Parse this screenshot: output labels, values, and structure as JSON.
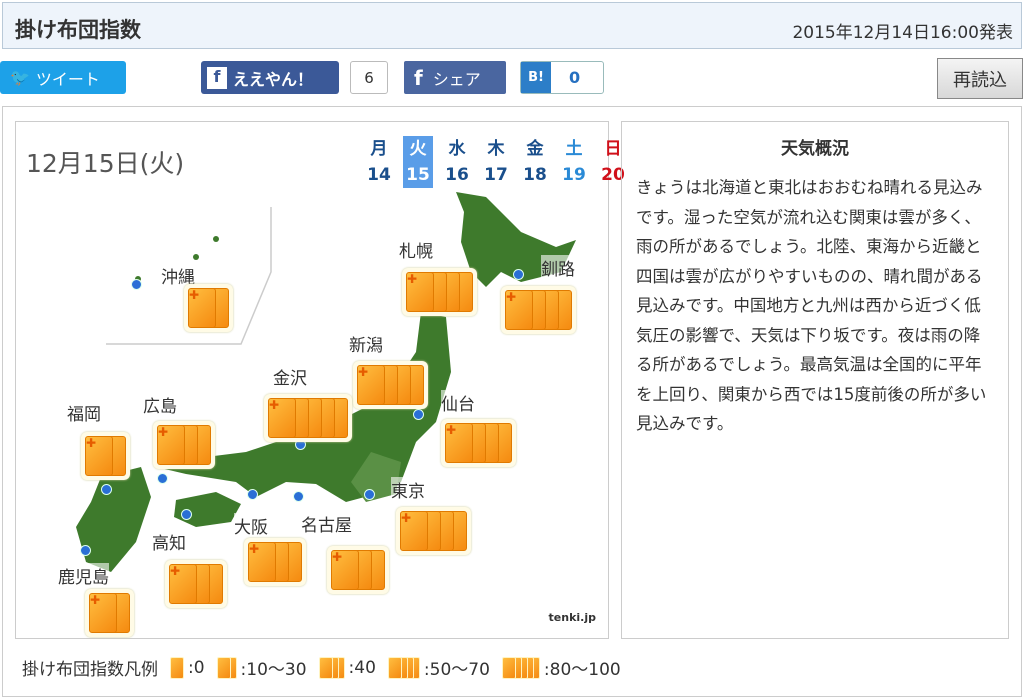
{
  "header": {
    "title": "掛け布団指数",
    "issued": "2015年12月14日16:00発表"
  },
  "social": {
    "tweet": "ツイート",
    "like": "ええやん！",
    "like_count": "6",
    "share": "シェア",
    "hatena_icon": "B!",
    "hatena_count": "0"
  },
  "reload": "再読込",
  "map": {
    "date": "12月15日(火)",
    "logo": "tenki.jp",
    "week": [
      {
        "day": "月",
        "num": "14",
        "color": "#1a4f8c"
      },
      {
        "day": "火",
        "num": "15",
        "color": "#ffffff",
        "selected": true
      },
      {
        "day": "水",
        "num": "16",
        "color": "#1a4f8c"
      },
      {
        "day": "木",
        "num": "17",
        "color": "#1a4f8c"
      },
      {
        "day": "金",
        "num": "18",
        "color": "#1a4f8c"
      },
      {
        "day": "土",
        "num": "19",
        "color": "#2a8ad6"
      },
      {
        "day": "日",
        "num": "20",
        "color": "#d0101a"
      }
    ],
    "cities": [
      {
        "name": "沖縄",
        "level": 2
      },
      {
        "name": "札幌",
        "level": 4
      },
      {
        "name": "釧路",
        "level": 4
      },
      {
        "name": "新潟",
        "level": 4
      },
      {
        "name": "金沢",
        "level": 5
      },
      {
        "name": "仙台",
        "level": 4
      },
      {
        "name": "広島",
        "level": 3
      },
      {
        "name": "福岡",
        "level": 2
      },
      {
        "name": "東京",
        "level": 4
      },
      {
        "name": "名古屋",
        "level": 3
      },
      {
        "name": "大阪",
        "level": 3
      },
      {
        "name": "高知",
        "level": 3
      },
      {
        "name": "鹿児島",
        "level": 2
      }
    ]
  },
  "weather": {
    "title": "天気概況",
    "text": "きょうは北海道と東北はおおむね晴れる見込みです。湿った空気が流れ込む関東は雲が多く、雨の所があるでしょう。北陸、東海から近畿と四国は雲が広がりやすいものの、晴れ間がある見込みです。中国地方と九州は西から近づく低気圧の影響で、天気は下り坂です。夜は雨の降る所があるでしょう。最高気温は全国的に平年を上回り、関東から西では15度前後の所が多い見込みです。"
  },
  "legend": {
    "title": "掛け布団指数凡例",
    "items": [
      {
        "cards": 1,
        "label": ":0"
      },
      {
        "cards": 2,
        "label": ":10〜30"
      },
      {
        "cards": 3,
        "label": ":40"
      },
      {
        "cards": 4,
        "label": ":50〜70"
      },
      {
        "cards": 5,
        "label": ":80〜100"
      }
    ]
  },
  "colors": {
    "accent": "#5a9de8",
    "futon": "#f58a10",
    "header_bg": "#eef4fb"
  }
}
